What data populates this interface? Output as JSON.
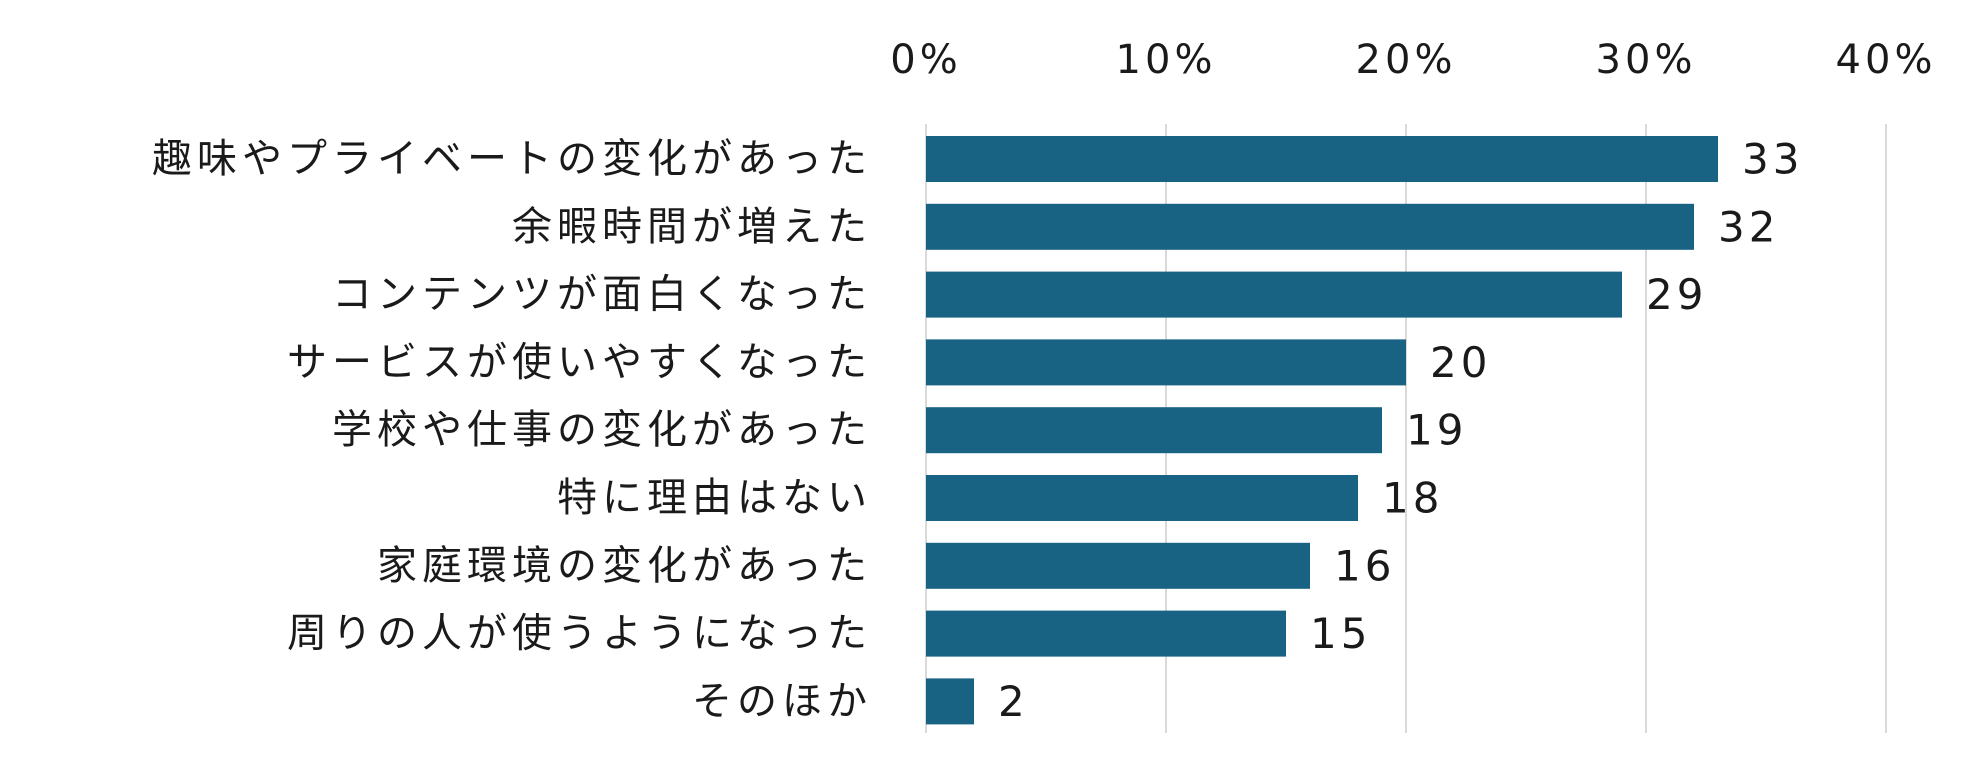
{
  "chart_data": {
    "type": "bar",
    "orientation": "horizontal",
    "categories": [
      "趣味やプライベートの変化があった",
      "余暇時間が増えた",
      "コンテンツが面白くなった",
      "サービスが使いやすくなった",
      "学校や仕事の変化があった",
      "特に理由はない",
      "家庭環境の変化があった",
      "周りの人が使うようになった",
      "そのほか"
    ],
    "values": [
      33,
      32,
      29,
      20,
      19,
      18,
      16,
      15,
      2
    ],
    "data_labels": [
      "33",
      "32",
      "29",
      "20",
      "19",
      "18",
      "16",
      "15",
      "2"
    ],
    "xlim": [
      0,
      40
    ],
    "x_ticks": [
      0,
      10,
      20,
      30,
      40
    ],
    "x_tick_labels": [
      "0%",
      "10%",
      "20%",
      "30%",
      "40%"
    ],
    "x_axis_position": "top",
    "grid": true,
    "legend": "none",
    "colors": {
      "bar": "#186283",
      "grid": "#d9d9d9",
      "text": "#1a1a1a"
    }
  }
}
